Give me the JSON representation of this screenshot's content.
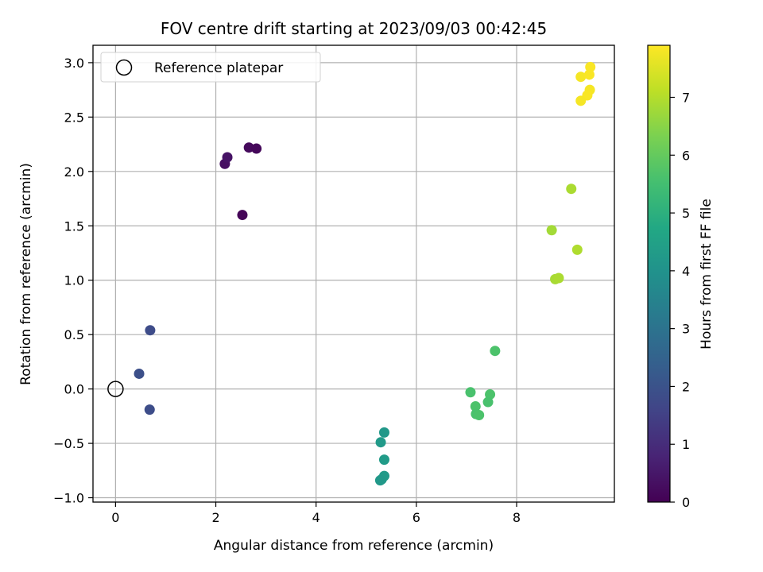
{
  "chart_data": {
    "type": "scatter",
    "title": "FOV centre drift starting at 2023/09/03 00:42:45",
    "xlabel": "Angular distance from reference (arcmin)",
    "ylabel": "Rotation from reference (arcmin)",
    "xlim": [
      -0.45,
      9.95
    ],
    "ylim": [
      -1.04,
      3.16
    ],
    "x_ticks": [
      0,
      2,
      4,
      6,
      8
    ],
    "y_ticks": [
      -1.0,
      -0.5,
      0.0,
      0.5,
      1.0,
      1.5,
      2.0,
      2.5,
      3.0
    ],
    "x_tick_labels": [
      "0",
      "2",
      "4",
      "6",
      "8"
    ],
    "y_tick_labels": [
      "−1.0",
      "−0.5",
      "0.0",
      "0.5",
      "1.0",
      "1.5",
      "2.0",
      "2.5",
      "3.0"
    ],
    "grid": true,
    "colormap": "viridis",
    "colorbar": {
      "label": "Hours from first FF file",
      "range": [
        0,
        7.9
      ],
      "ticks": [
        0,
        1,
        2,
        3,
        4,
        5,
        6,
        7
      ],
      "tick_labels": [
        "0",
        "1",
        "2",
        "3",
        "4",
        "5",
        "6",
        "7"
      ]
    },
    "legend": {
      "position": "top-left",
      "label": "Reference platepar"
    },
    "reference_point": {
      "x": 0,
      "y": 0
    },
    "points": [
      {
        "x": 2.53,
        "y": 1.6,
        "hours": 0.1
      },
      {
        "x": 2.18,
        "y": 2.07,
        "hours": 0.3
      },
      {
        "x": 2.23,
        "y": 2.13,
        "hours": 0.4
      },
      {
        "x": 2.66,
        "y": 2.22,
        "hours": 0.2
      },
      {
        "x": 2.81,
        "y": 2.21,
        "hours": 0.15
      },
      {
        "x": 0.69,
        "y": 0.54,
        "hours": 1.8
      },
      {
        "x": 0.47,
        "y": 0.14,
        "hours": 1.9
      },
      {
        "x": 0.68,
        "y": -0.19,
        "hours": 1.85
      },
      {
        "x": 5.36,
        "y": -0.4,
        "hours": 4.2
      },
      {
        "x": 5.29,
        "y": -0.49,
        "hours": 4.25
      },
      {
        "x": 5.36,
        "y": -0.65,
        "hours": 4.3
      },
      {
        "x": 5.36,
        "y": -0.8,
        "hours": 4.25
      },
      {
        "x": 5.31,
        "y": -0.83,
        "hours": 4.3
      },
      {
        "x": 5.28,
        "y": -0.84,
        "hours": 4.2
      },
      {
        "x": 7.57,
        "y": 0.35,
        "hours": 5.65
      },
      {
        "x": 7.08,
        "y": -0.03,
        "hours": 5.6
      },
      {
        "x": 7.47,
        "y": -0.05,
        "hours": 5.65
      },
      {
        "x": 7.43,
        "y": -0.12,
        "hours": 5.6
      },
      {
        "x": 7.18,
        "y": -0.16,
        "hours": 5.65
      },
      {
        "x": 7.19,
        "y": -0.23,
        "hours": 5.6
      },
      {
        "x": 7.25,
        "y": -0.24,
        "hours": 5.65
      },
      {
        "x": 9.09,
        "y": 1.84,
        "hours": 6.9
      },
      {
        "x": 8.7,
        "y": 1.46,
        "hours": 6.8
      },
      {
        "x": 9.21,
        "y": 1.28,
        "hours": 6.95
      },
      {
        "x": 8.77,
        "y": 1.01,
        "hours": 6.85
      },
      {
        "x": 8.84,
        "y": 1.02,
        "hours": 6.9
      },
      {
        "x": 9.47,
        "y": 2.96,
        "hours": 7.85
      },
      {
        "x": 9.28,
        "y": 2.87,
        "hours": 7.8
      },
      {
        "x": 9.45,
        "y": 2.89,
        "hours": 7.85
      },
      {
        "x": 9.46,
        "y": 2.75,
        "hours": 7.8
      },
      {
        "x": 9.41,
        "y": 2.7,
        "hours": 7.85
      },
      {
        "x": 9.28,
        "y": 2.65,
        "hours": 7.8
      }
    ]
  }
}
